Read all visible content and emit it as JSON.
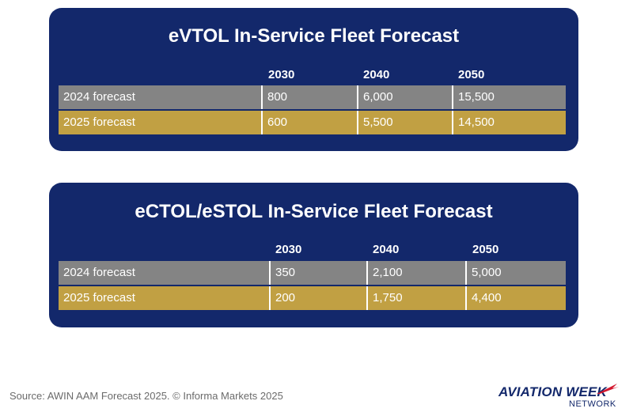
{
  "chart_data": [
    {
      "type": "table",
      "title": "eVTOL In-Service Fleet Forecast",
      "columns": [
        "2030",
        "2040",
        "2050"
      ],
      "rows": [
        {
          "label": "2024 forecast",
          "values": [
            "800",
            "6,000",
            "15,500"
          ],
          "color": "#848484"
        },
        {
          "label": "2025 forecast",
          "values": [
            "600",
            "5,500",
            "14,500"
          ],
          "color": "#c1a043"
        }
      ]
    },
    {
      "type": "table",
      "title": "eCTOL/eSTOL In-Service Fleet Forecast",
      "columns": [
        "2030",
        "2040",
        "2050"
      ],
      "rows": [
        {
          "label": "2024 forecast",
          "values": [
            "350",
            "2,100",
            "5,000"
          ],
          "color": "#848484"
        },
        {
          "label": "2025 forecast",
          "values": [
            "200",
            "1,750",
            "4,400"
          ],
          "color": "#c1a043"
        }
      ]
    }
  ],
  "footer": {
    "source": "Source: AWIN AAM Forecast 2025. © Informa Markets 2025",
    "logo_main": "AVIATION WEEK",
    "logo_sub": "NETWORK"
  },
  "colors": {
    "panel": "#13286b",
    "row_2024": "#848484",
    "row_2025": "#c1a043",
    "logo_accent": "#d3172e"
  }
}
